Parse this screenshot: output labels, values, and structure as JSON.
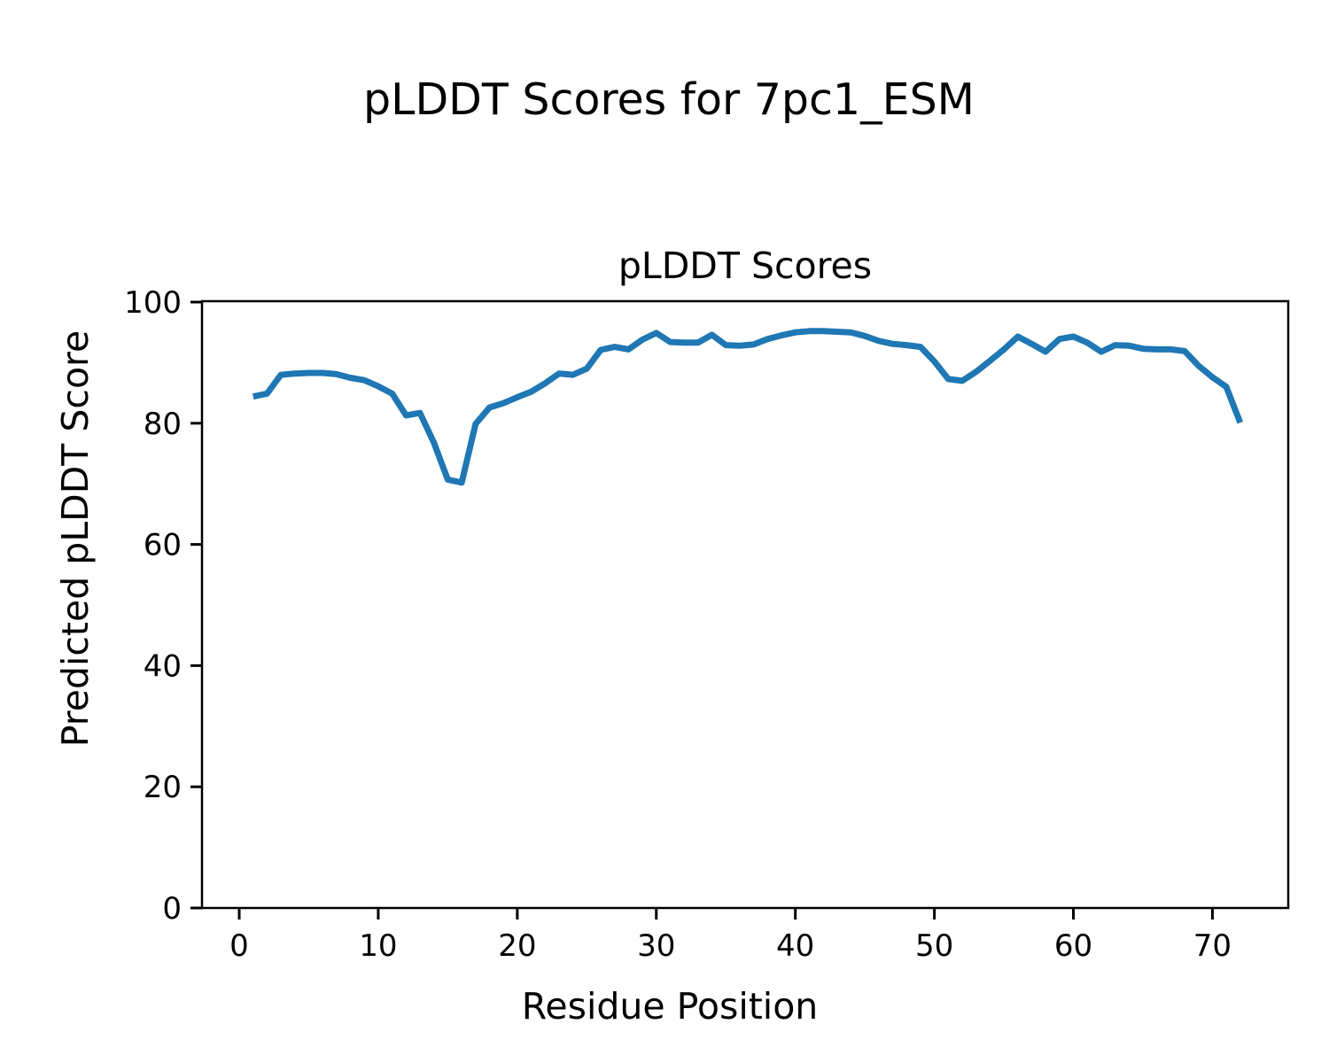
{
  "figure": {
    "suptitle": "pLDDT Scores for 7pc1_ESM",
    "axes_title": "pLDDT Scores",
    "xlabel": "Residue Position",
    "ylabel": "Predicted pLDDT Score"
  },
  "colors": {
    "line": "#1f77b4",
    "text": "#000000",
    "spine": "#000000",
    "background": "#ffffff"
  },
  "chart_data": {
    "type": "line",
    "title": "pLDDT Scores",
    "suptitle": "pLDDT Scores for 7pc1_ESM",
    "xlabel": "Residue Position",
    "ylabel": "Predicted pLDDT Score",
    "xlim": [
      -2.7,
      75.5
    ],
    "ylim": [
      0,
      100
    ],
    "xticks": [
      0,
      10,
      20,
      30,
      40,
      50,
      60,
      70
    ],
    "yticks": [
      0,
      20,
      40,
      60,
      80,
      100
    ],
    "grid": false,
    "legend": null,
    "series": [
      {
        "name": "pLDDT",
        "color": "#1f77b4",
        "linewidth": 7,
        "x": [
          1,
          2,
          3,
          4,
          5,
          6,
          7,
          8,
          9,
          10,
          11,
          12,
          13,
          14,
          15,
          16,
          17,
          18,
          19,
          20,
          21,
          22,
          23,
          24,
          25,
          26,
          27,
          28,
          29,
          30,
          31,
          32,
          33,
          34,
          35,
          36,
          37,
          38,
          39,
          40,
          41,
          42,
          43,
          44,
          45,
          46,
          47,
          48,
          49,
          50,
          51,
          52,
          53,
          54,
          55,
          56,
          57,
          58,
          59,
          60,
          61,
          62,
          63,
          64,
          65,
          66,
          67,
          68,
          69,
          70,
          71,
          72
        ],
        "y": [
          84.4,
          84.9,
          88.0,
          88.2,
          88.3,
          88.3,
          88.1,
          87.5,
          87.1,
          86.1,
          84.9,
          81.3,
          81.7,
          76.8,
          70.7,
          70.2,
          79.9,
          82.6,
          83.3,
          84.3,
          85.2,
          86.6,
          88.2,
          88.0,
          89.0,
          92.1,
          92.6,
          92.2,
          93.8,
          94.9,
          93.4,
          93.3,
          93.3,
          94.6,
          92.9,
          92.8,
          93.0,
          93.9,
          94.5,
          95.0,
          95.2,
          95.2,
          95.1,
          95.0,
          94.4,
          93.6,
          93.1,
          92.9,
          92.6,
          90.2,
          87.3,
          87.0,
          88.5,
          90.3,
          92.2,
          94.3,
          93.1,
          91.8,
          93.9,
          94.3,
          93.3,
          91.8,
          92.9,
          92.8,
          92.3,
          92.2,
          92.2,
          91.9,
          89.5,
          87.6,
          86.0,
          80.1
        ]
      }
    ]
  }
}
